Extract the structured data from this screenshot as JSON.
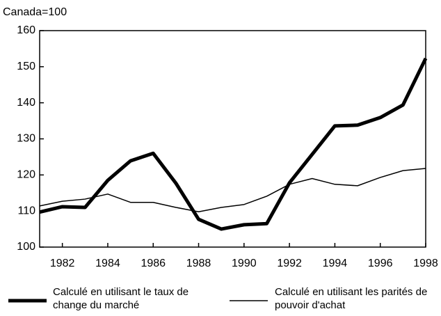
{
  "chart_data": {
    "type": "line",
    "title": "Canada=100",
    "x": [
      1981,
      1982,
      1983,
      1984,
      1985,
      1986,
      1987,
      1988,
      1989,
      1990,
      1991,
      1992,
      1993,
      1994,
      1995,
      1996,
      1997,
      1998
    ],
    "series": [
      {
        "name": "Calculé en utilisant le taux de change du marché",
        "color": "#000000",
        "width": 5,
        "values": [
          109.7,
          111.2,
          111,
          118.5,
          123.9,
          126,
          117.7,
          107.7,
          105,
          106.2,
          106.5,
          117.8,
          125.7,
          133.6,
          133.8,
          135.9,
          139.4,
          152.3
        ]
      },
      {
        "name": "Calculé en utilisant les parités de pouvoir d'achat",
        "color": "#000000",
        "width": 1.5,
        "values": [
          111.4,
          112.7,
          113.3,
          114.7,
          112.4,
          112.4,
          111,
          109.8,
          111,
          111.8,
          114.1,
          117.4,
          119,
          117.4,
          117,
          119.3,
          121.2,
          121.8
        ]
      }
    ],
    "xlim": [
      1981,
      1998
    ],
    "xticks": [
      1982,
      1984,
      1986,
      1988,
      1990,
      1992,
      1994,
      1996,
      1998
    ],
    "ylim": [
      100,
      160
    ],
    "yticks": [
      100,
      110,
      120,
      130,
      140,
      150,
      160
    ],
    "grid": false
  }
}
